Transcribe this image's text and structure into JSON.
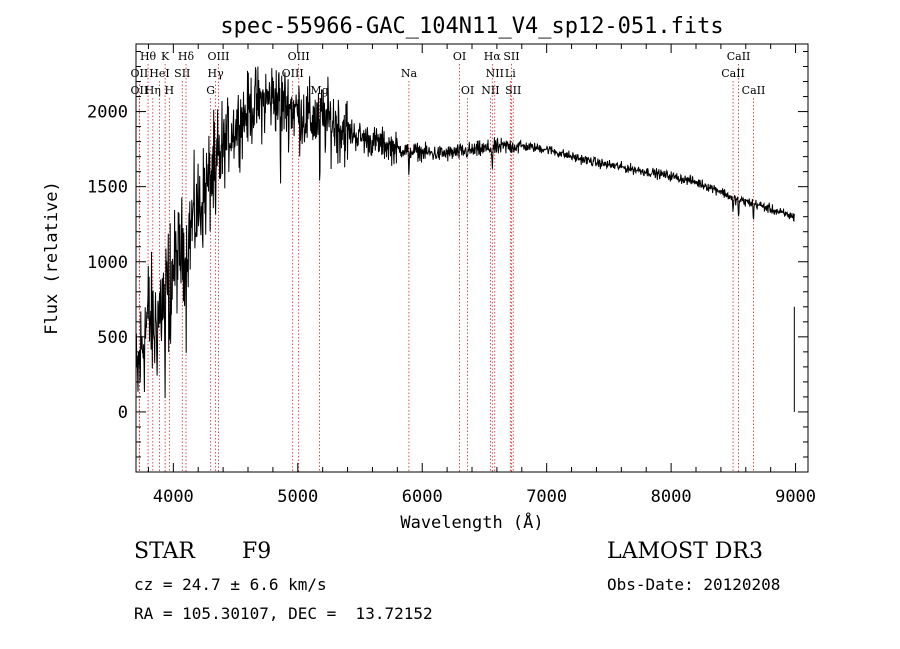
{
  "chart_data": {
    "type": "line",
    "title": "spec-55966-GAC_104N11_V4_sp12-051.fits",
    "xlabel": "Wavelength (Å)",
    "ylabel": "Flux (relative)",
    "xlim": [
      3700,
      9100
    ],
    "ylim": [
      -400,
      2450
    ],
    "x_ticks": [
      4000,
      5000,
      6000,
      7000,
      8000,
      9000
    ],
    "y_ticks": [
      0,
      500,
      1000,
      1500,
      2000
    ],
    "x_tick_labels": [
      "4000",
      "5000",
      "6000",
      "7000",
      "8000",
      "9000"
    ],
    "y_tick_labels": [
      "0",
      "500",
      "1000",
      "1500",
      "2000"
    ],
    "spectrum_envelope": {
      "x": [
        3700,
        3750,
        3800,
        3850,
        3900,
        3950,
        4000,
        4050,
        4100,
        4150,
        4200,
        4250,
        4300,
        4350,
        4400,
        4450,
        4500,
        4550,
        4600,
        4650,
        4700,
        4800,
        4900,
        5000,
        5100,
        5200,
        5300,
        5400,
        5500,
        5600,
        5700,
        5800,
        5900,
        6000,
        6100,
        6200,
        6300,
        6400,
        6500,
        6600,
        6700,
        6800,
        6900,
        7000,
        7200,
        7400,
        7600,
        7800,
        8000,
        8200,
        8400,
        8500,
        8600,
        8700,
        8800,
        8900,
        8990
      ],
      "y": [
        150,
        450,
        650,
        550,
        700,
        800,
        950,
        1050,
        1100,
        1250,
        1350,
        1450,
        1550,
        1650,
        1750,
        1850,
        1900,
        1950,
        2000,
        2050,
        2050,
        2100,
        2050,
        2000,
        1950,
        1950,
        1920,
        1870,
        1830,
        1800,
        1780,
        1750,
        1740,
        1730,
        1720,
        1720,
        1730,
        1740,
        1750,
        1760,
        1770,
        1770,
        1760,
        1750,
        1700,
        1660,
        1630,
        1600,
        1570,
        1530,
        1470,
        1420,
        1400,
        1380,
        1350,
        1320,
        1300
      ]
    },
    "spectral_lines": [
      {
        "label": "Hθ",
        "wavelength": 3797,
        "tier": 0
      },
      {
        "label": "K",
        "wavelength": 3934,
        "tier": 0
      },
      {
        "label": "Hδ",
        "wavelength": 4102,
        "tier": 0
      },
      {
        "label": "OIII",
        "wavelength": 4363,
        "tier": 0
      },
      {
        "label": "OIII",
        "wavelength": 5007,
        "tier": 0
      },
      {
        "label": "OI",
        "wavelength": 6300,
        "tier": 0
      },
      {
        "label": "Hα",
        "wavelength": 6563,
        "tier": 0
      },
      {
        "label": "SII",
        "wavelength": 6717,
        "tier": 0
      },
      {
        "label": "CaII",
        "wavelength": 8542,
        "tier": 0
      },
      {
        "label": "OII",
        "wavelength": 3727,
        "tier": 1
      },
      {
        "label": "HeI",
        "wavelength": 3889,
        "tier": 1
      },
      {
        "label": "SII",
        "wavelength": 4072,
        "tier": 1
      },
      {
        "label": "Hγ",
        "wavelength": 4340,
        "tier": 1
      },
      {
        "label": "OIII",
        "wavelength": 4959,
        "tier": 1
      },
      {
        "label": "Na",
        "wavelength": 5893,
        "tier": 1
      },
      {
        "label": "NII",
        "wavelength": 6583,
        "tier": 1
      },
      {
        "label": "Li",
        "wavelength": 6708,
        "tier": 1
      },
      {
        "label": "CaII",
        "wavelength": 8498,
        "tier": 1
      },
      {
        "label": "OII",
        "wavelength": 3727,
        "tier": 2
      },
      {
        "label": "Hη",
        "wavelength": 3835,
        "tier": 2
      },
      {
        "label": "H",
        "wavelength": 3968,
        "tier": 2
      },
      {
        "label": "G",
        "wavelength": 4300,
        "tier": 2
      },
      {
        "label": "Mg",
        "wavelength": 5175,
        "tier": 2
      },
      {
        "label": "OI",
        "wavelength": 6364,
        "tier": 2
      },
      {
        "label": "NII",
        "wavelength": 6548,
        "tier": 2
      },
      {
        "label": "SII",
        "wavelength": 6731,
        "tier": 2
      },
      {
        "label": "CaII",
        "wavelength": 8662,
        "tier": 2
      }
    ],
    "grid": false,
    "legend": "none"
  },
  "info": {
    "object_class": "STAR",
    "subclass": "F9",
    "survey": "LAMOST DR3",
    "redshift_line": "cz = 24.7 ± 6.6 km/s",
    "obs_date": "Obs-Date: 20120208",
    "coords": "RA = 105.30107, DEC =  13.72152"
  },
  "colors": {
    "line_marker": "#d62728",
    "spectrum": "#000000",
    "background": "#ffffff"
  }
}
